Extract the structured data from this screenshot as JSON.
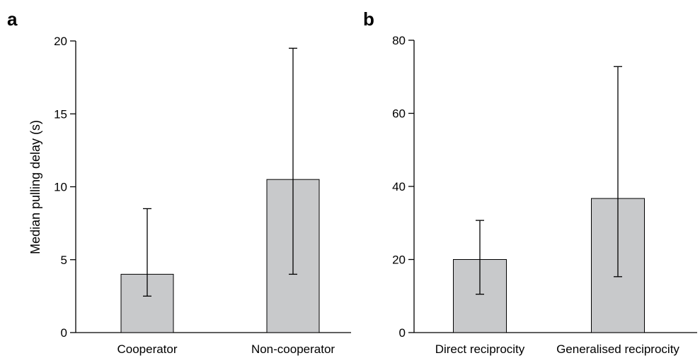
{
  "chart_data": [
    {
      "type": "bar",
      "panel_label": "a",
      "categories": [
        "Cooperator",
        "Non-cooperator"
      ],
      "values": [
        4,
        10.5
      ],
      "error_low": [
        2.5,
        4
      ],
      "error_high": [
        8.5,
        19.5
      ],
      "ylabel": "Median pulling delay (s)",
      "ylim": [
        0,
        20
      ],
      "yticks": [
        "0",
        "5",
        "10",
        "15",
        "20"
      ],
      "bar_color": "#c8c9cb",
      "grid": false
    },
    {
      "type": "bar",
      "panel_label": "b",
      "categories": [
        "Direct reciprocity",
        "Generalised reciprocity"
      ],
      "values": [
        20,
        36.7
      ],
      "error_low": [
        10.5,
        15.3
      ],
      "error_high": [
        30.7,
        72.8
      ],
      "ylabel": "",
      "ylim": [
        0,
        80
      ],
      "yticks": [
        "0",
        "20",
        "40",
        "60",
        "80"
      ],
      "bar_color": "#c8c9cb",
      "grid": false
    }
  ]
}
